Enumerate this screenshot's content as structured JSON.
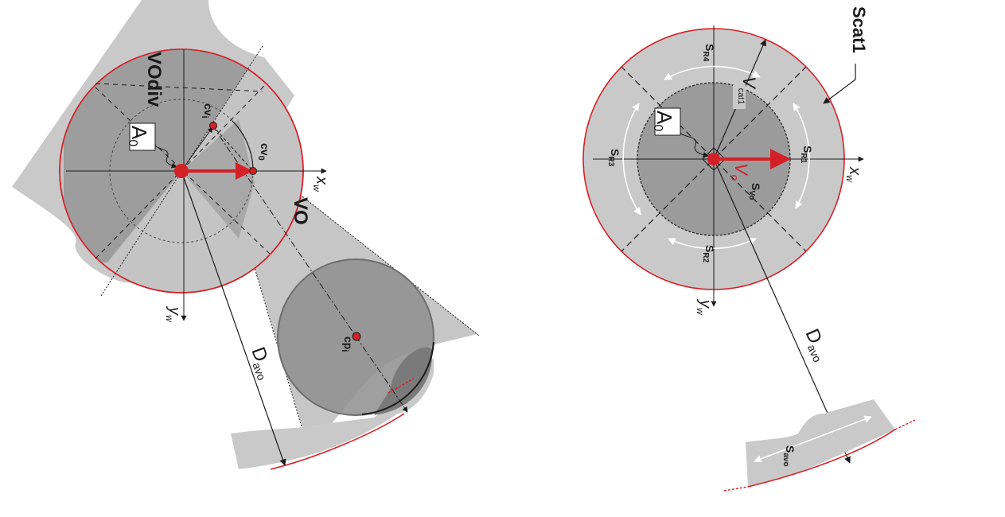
{
  "left_diagram": {
    "labels": {
      "vodiv": "VOdiv",
      "vo": "VO",
      "a0": "A",
      "a0_sub": "0",
      "cvi": "cv",
      "cvi_sub": "i",
      "cv0": "cv",
      "cv0_sub": "0",
      "cpi": "cp",
      "cpi_sub": "i",
      "xw": "x",
      "xw_sub": "w",
      "yw": "y",
      "yw_sub": "w",
      "davo": "D",
      "davo_sub": "avo"
    }
  },
  "right_diagram": {
    "labels": {
      "scat1": "Scat1",
      "a0": "A",
      "a0_sub": "0",
      "vcat": "V",
      "vcat_sub": "cat1",
      "vo": "V",
      "vo_sub": "o",
      "sr1": "S",
      "sr1_sub": "R1",
      "sr2": "S",
      "sr2_sub": "R2",
      "sr3": "S",
      "sr3_sub": "R3",
      "sr4": "S",
      "sr4_sub": "R4",
      "svo": "S",
      "svo_sub": "Vo",
      "savo": "S",
      "savo_sub": "avo",
      "xw": "x",
      "xw_sub": "w",
      "yw": "y",
      "yw_sub": "w",
      "davo": "D",
      "davo_sub": "avo"
    }
  },
  "colors": {
    "red": "#d42027",
    "dark_gray": "#9b9b9b",
    "light_gray": "#c9c9c9",
    "obstacle_gray": "#8e8e8e",
    "line": "#1a1a1a",
    "white": "#ffffff"
  }
}
